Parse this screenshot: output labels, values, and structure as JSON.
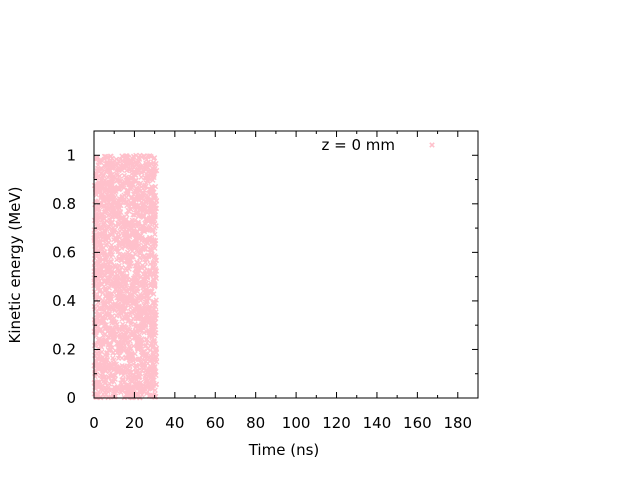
{
  "chart_data": {
    "type": "scatter",
    "xlabel": "Time (ns)",
    "ylabel": "Kinetic energy (MeV)",
    "xlim": [
      0,
      190
    ],
    "ylim": [
      0,
      1.1
    ],
    "x_ticks": [
      0,
      20,
      40,
      60,
      80,
      100,
      120,
      140,
      160,
      180
    ],
    "x_tick_labels": [
      "0",
      "20",
      "40",
      "60",
      "80",
      "100",
      "120",
      "140",
      "160",
      "180"
    ],
    "y_ticks": [
      0,
      0.2,
      0.4,
      0.6,
      0.8,
      1.0
    ],
    "y_tick_labels": [
      "0",
      "0.2",
      "0.4",
      "0.6",
      "0.8",
      "1"
    ],
    "grid": false,
    "legend_position": "top-right",
    "series": [
      {
        "name": "z = 0 mm",
        "marker": "x",
        "color": "#ffc0cb",
        "x_range": [
          0,
          31
        ],
        "y_range": [
          0,
          1.0
        ],
        "point_count": 2200
      }
    ]
  }
}
